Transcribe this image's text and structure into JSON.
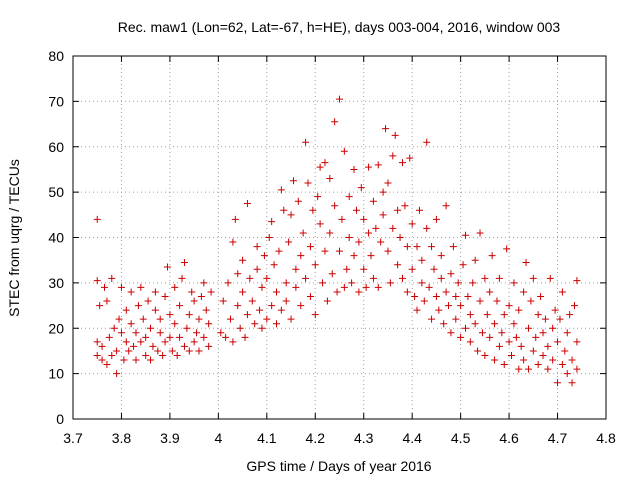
{
  "chart_data": {
    "type": "scatter",
    "title": "Rec. maw1 (Lon=62, Lat=-67, h=HE), days 003-004, 2016, window 003",
    "xlabel": "GPS time / Days of year 2016",
    "ylabel": "STEC from uqrg / TECUs",
    "xlim": [
      3.7,
      4.8
    ],
    "ylim": [
      0,
      80
    ],
    "x_ticks": [
      3.7,
      3.8,
      3.9,
      4.0,
      4.1,
      4.2,
      4.3,
      4.4,
      4.5,
      4.6,
      4.7,
      4.8
    ],
    "x_tick_labels": [
      "3.7",
      "3.8",
      "3.9",
      "4",
      "4.1",
      "4.2",
      "4.3",
      "4.4",
      "4.5",
      "4.6",
      "4.7",
      "4.8"
    ],
    "y_ticks": [
      0,
      10,
      20,
      30,
      40,
      50,
      60,
      70,
      80
    ],
    "y_tick_labels": [
      "0",
      "10",
      "20",
      "30",
      "40",
      "50",
      "60",
      "70",
      "80"
    ],
    "grid": true,
    "marker": "+",
    "series": [
      {
        "name": "STEC",
        "color": "#cc0000",
        "points": [
          [
            3.75,
            44
          ],
          [
            3.75,
            30.5
          ],
          [
            3.75,
            17
          ],
          [
            3.75,
            14
          ],
          [
            3.755,
            25
          ],
          [
            3.76,
            13
          ],
          [
            3.76,
            16
          ],
          [
            3.765,
            29
          ],
          [
            3.77,
            12
          ],
          [
            3.77,
            26
          ],
          [
            3.775,
            18
          ],
          [
            3.78,
            31
          ],
          [
            3.78,
            14
          ],
          [
            3.785,
            20
          ],
          [
            3.79,
            10
          ],
          [
            3.79,
            15
          ],
          [
            3.795,
            22
          ],
          [
            3.8,
            19
          ],
          [
            3.8,
            29
          ],
          [
            3.805,
            13
          ],
          [
            3.81,
            17
          ],
          [
            3.81,
            24
          ],
          [
            3.815,
            15
          ],
          [
            3.82,
            21
          ],
          [
            3.82,
            28
          ],
          [
            3.825,
            16
          ],
          [
            3.83,
            13
          ],
          [
            3.83,
            19
          ],
          [
            3.835,
            25
          ],
          [
            3.84,
            29
          ],
          [
            3.84,
            17
          ],
          [
            3.845,
            22
          ],
          [
            3.85,
            14
          ],
          [
            3.85,
            18
          ],
          [
            3.855,
            26
          ],
          [
            3.86,
            13
          ],
          [
            3.86,
            20
          ],
          [
            3.865,
            16
          ],
          [
            3.87,
            24
          ],
          [
            3.87,
            28
          ],
          [
            3.875,
            15
          ],
          [
            3.88,
            19
          ],
          [
            3.88,
            22
          ],
          [
            3.885,
            14
          ],
          [
            3.89,
            17
          ],
          [
            3.89,
            27
          ],
          [
            3.895,
            33.5
          ],
          [
            3.9,
            18
          ],
          [
            3.9,
            23
          ],
          [
            3.905,
            15
          ],
          [
            3.91,
            21
          ],
          [
            3.91,
            29
          ],
          [
            3.915,
            14
          ],
          [
            3.92,
            18
          ],
          [
            3.92,
            25
          ],
          [
            3.925,
            31
          ],
          [
            3.93,
            16
          ],
          [
            3.93,
            34.5
          ],
          [
            3.935,
            20
          ],
          [
            3.94,
            15
          ],
          [
            3.94,
            23
          ],
          [
            3.945,
            28
          ],
          [
            3.95,
            17
          ],
          [
            3.95,
            26
          ],
          [
            3.955,
            19
          ],
          [
            3.96,
            15
          ],
          [
            3.96,
            22
          ],
          [
            3.965,
            27
          ],
          [
            3.97,
            18
          ],
          [
            3.97,
            30
          ],
          [
            3.975,
            24
          ],
          [
            3.98,
            21
          ],
          [
            3.98,
            16
          ],
          [
            3.985,
            28
          ],
          [
            4.005,
            19
          ],
          [
            4.01,
            26
          ],
          [
            4.015,
            18
          ],
          [
            4.02,
            30
          ],
          [
            4.025,
            22
          ],
          [
            4.03,
            17
          ],
          [
            4.03,
            39
          ],
          [
            4.035,
            44
          ],
          [
            4.04,
            25
          ],
          [
            4.04,
            32
          ],
          [
            4.045,
            20
          ],
          [
            4.05,
            28
          ],
          [
            4.05,
            35
          ],
          [
            4.055,
            18
          ],
          [
            4.06,
            23
          ],
          [
            4.06,
            47.5
          ],
          [
            4.065,
            31
          ],
          [
            4.07,
            26
          ],
          [
            4.075,
            21
          ],
          [
            4.08,
            38
          ],
          [
            4.08,
            33
          ],
          [
            4.085,
            24
          ],
          [
            4.09,
            29
          ],
          [
            4.09,
            20
          ],
          [
            4.095,
            36
          ],
          [
            4.1,
            22
          ],
          [
            4.1,
            31
          ],
          [
            4.105,
            40
          ],
          [
            4.11,
            25
          ],
          [
            4.11,
            43.5
          ],
          [
            4.115,
            34
          ],
          [
            4.12,
            21
          ],
          [
            4.12,
            28
          ],
          [
            4.125,
            37
          ],
          [
            4.13,
            24
          ],
          [
            4.13,
            50.5
          ],
          [
            4.135,
            46
          ],
          [
            4.14,
            30
          ],
          [
            4.14,
            26
          ],
          [
            4.145,
            39
          ],
          [
            4.15,
            22
          ],
          [
            4.15,
            45
          ],
          [
            4.155,
            52.5
          ],
          [
            4.16,
            33
          ],
          [
            4.16,
            29
          ],
          [
            4.165,
            48
          ],
          [
            4.17,
            36
          ],
          [
            4.17,
            25
          ],
          [
            4.175,
            41
          ],
          [
            4.18,
            31
          ],
          [
            4.18,
            61
          ],
          [
            4.185,
            52
          ],
          [
            4.19,
            27
          ],
          [
            4.19,
            38
          ],
          [
            4.195,
            46
          ],
          [
            4.2,
            23
          ],
          [
            4.2,
            34
          ],
          [
            4.205,
            49
          ],
          [
            4.21,
            43
          ],
          [
            4.21,
            55.5
          ],
          [
            4.215,
            30
          ],
          [
            4.22,
            37
          ],
          [
            4.22,
            56.5
          ],
          [
            4.225,
            26
          ],
          [
            4.23,
            41
          ],
          [
            4.23,
            53
          ],
          [
            4.235,
            32
          ],
          [
            4.24,
            65.5
          ],
          [
            4.24,
            47
          ],
          [
            4.245,
            28
          ],
          [
            4.25,
            70.5
          ],
          [
            4.25,
            37
          ],
          [
            4.255,
            44
          ],
          [
            4.26,
            29
          ],
          [
            4.26,
            59
          ],
          [
            4.265,
            33
          ],
          [
            4.27,
            40
          ],
          [
            4.27,
            49
          ],
          [
            4.275,
            30
          ],
          [
            4.28,
            55
          ],
          [
            4.28,
            36
          ],
          [
            4.285,
            46
          ],
          [
            4.29,
            28
          ],
          [
            4.29,
            39
          ],
          [
            4.295,
            51
          ],
          [
            4.3,
            33
          ],
          [
            4.3,
            44
          ],
          [
            4.305,
            29
          ],
          [
            4.31,
            41
          ],
          [
            4.31,
            55.5
          ],
          [
            4.315,
            36
          ],
          [
            4.32,
            48
          ],
          [
            4.32,
            31
          ],
          [
            4.325,
            42
          ],
          [
            4.33,
            56
          ],
          [
            4.33,
            29
          ],
          [
            4.335,
            39
          ],
          [
            4.34,
            50
          ],
          [
            4.34,
            45
          ],
          [
            4.345,
            64
          ],
          [
            4.35,
            37
          ],
          [
            4.35,
            52
          ],
          [
            4.355,
            30
          ],
          [
            4.36,
            58
          ],
          [
            4.36,
            42
          ],
          [
            4.365,
            62.5
          ],
          [
            4.37,
            46
          ],
          [
            4.37,
            34
          ],
          [
            4.375,
            40
          ],
          [
            4.38,
            56.5
          ],
          [
            4.38,
            31
          ],
          [
            4.385,
            47
          ],
          [
            4.39,
            38
          ],
          [
            4.39,
            28
          ],
          [
            4.395,
            57.5
          ],
          [
            4.4,
            43
          ],
          [
            4.4,
            33
          ],
          [
            4.405,
            27
          ],
          [
            4.41,
            38
          ],
          [
            4.41,
            24
          ],
          [
            4.415,
            46
          ],
          [
            4.42,
            30
          ],
          [
            4.42,
            35
          ],
          [
            4.425,
            26
          ],
          [
            4.43,
            61
          ],
          [
            4.43,
            42
          ],
          [
            4.435,
            29
          ],
          [
            4.44,
            38
          ],
          [
            4.44,
            22
          ],
          [
            4.445,
            33
          ],
          [
            4.45,
            27
          ],
          [
            4.45,
            44
          ],
          [
            4.455,
            24
          ],
          [
            4.46,
            31
          ],
          [
            4.46,
            36
          ],
          [
            4.465,
            21
          ],
          [
            4.47,
            28
          ],
          [
            4.47,
            47
          ],
          [
            4.475,
            25
          ],
          [
            4.48,
            32
          ],
          [
            4.48,
            19
          ],
          [
            4.485,
            38
          ],
          [
            4.49,
            27
          ],
          [
            4.49,
            22
          ],
          [
            4.495,
            30
          ],
          [
            4.5,
            18
          ],
          [
            4.5,
            25
          ],
          [
            4.505,
            34
          ],
          [
            4.51,
            20
          ],
          [
            4.51,
            40.5
          ],
          [
            4.515,
            27
          ],
          [
            4.52,
            23
          ],
          [
            4.52,
            17
          ],
          [
            4.525,
            30
          ],
          [
            4.53,
            21
          ],
          [
            4.53,
            35
          ],
          [
            4.535,
            15
          ],
          [
            4.54,
            26
          ],
          [
            4.54,
            41
          ],
          [
            4.545,
            19
          ],
          [
            4.55,
            31
          ],
          [
            4.55,
            14
          ],
          [
            4.555,
            23
          ],
          [
            4.56,
            28
          ],
          [
            4.56,
            18
          ],
          [
            4.565,
            36
          ],
          [
            4.57,
            21
          ],
          [
            4.57,
            13
          ],
          [
            4.575,
            26
          ],
          [
            4.58,
            16
          ],
          [
            4.58,
            31
          ],
          [
            4.585,
            19
          ],
          [
            4.59,
            23
          ],
          [
            4.59,
            12
          ],
          [
            4.595,
            37.5
          ],
          [
            4.6,
            17
          ],
          [
            4.6,
            25
          ],
          [
            4.605,
            14
          ],
          [
            4.61,
            21
          ],
          [
            4.61,
            30
          ],
          [
            4.615,
            18
          ],
          [
            4.62,
            11
          ],
          [
            4.62,
            24
          ],
          [
            4.625,
            16
          ],
          [
            4.63,
            28
          ],
          [
            4.63,
            13
          ],
          [
            4.635,
            34.5
          ],
          [
            4.64,
            20
          ],
          [
            4.64,
            11
          ],
          [
            4.645,
            26
          ],
          [
            4.65,
            15
          ],
          [
            4.65,
            31
          ],
          [
            4.655,
            18
          ],
          [
            4.66,
            12
          ],
          [
            4.66,
            23
          ],
          [
            4.665,
            27
          ],
          [
            4.67,
            14
          ],
          [
            4.67,
            19
          ],
          [
            4.675,
            22
          ],
          [
            4.68,
            11
          ],
          [
            4.68,
            16
          ],
          [
            4.685,
            31
          ],
          [
            4.69,
            20
          ],
          [
            4.69,
            13
          ],
          [
            4.695,
            24
          ],
          [
            4.7,
            8
          ],
          [
            4.7,
            17
          ],
          [
            4.705,
            22
          ],
          [
            4.71,
            12
          ],
          [
            4.71,
            28
          ],
          [
            4.715,
            15
          ],
          [
            4.72,
            19
          ],
          [
            4.72,
            10
          ],
          [
            4.725,
            23
          ],
          [
            4.73,
            13
          ],
          [
            4.73,
            8
          ],
          [
            4.735,
            25
          ],
          [
            4.74,
            17
          ],
          [
            4.74,
            11
          ],
          [
            4.74,
            30.5
          ]
        ]
      }
    ]
  }
}
